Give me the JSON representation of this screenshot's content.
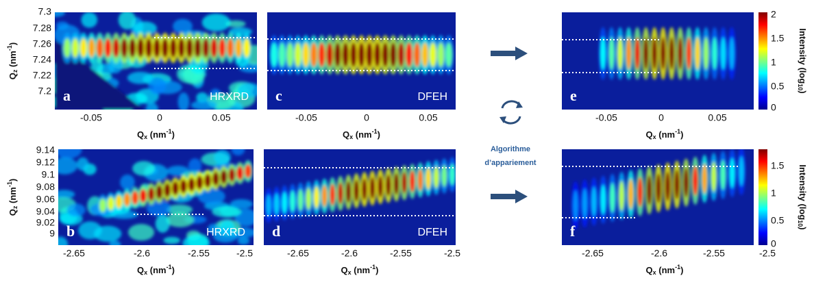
{
  "panels": [
    {
      "letter": "a",
      "method": "HRXRD",
      "x_ticks": [
        "-0.05",
        "0",
        "0.05"
      ],
      "y_ticks": [
        "7.3",
        "7.28",
        "7.26",
        "7.24",
        "7.22",
        "7.2"
      ]
    },
    {
      "letter": "c",
      "method": "DFEH",
      "x_ticks": [
        "-0.05",
        "0",
        "0.05"
      ]
    },
    {
      "letter": "e",
      "x_ticks": [
        "-0.05",
        "0",
        "0.05"
      ],
      "colorbar_ticks": [
        "2",
        "1.5",
        "1",
        "0.5",
        "0"
      ]
    },
    {
      "letter": "b",
      "method": "HRXRD",
      "x_ticks": [
        "-2.65",
        "-2.6",
        "-2.55",
        "-2.5"
      ],
      "y_ticks": [
        "9.14",
        "9.12",
        "9.1",
        "9.08",
        "9.06",
        "9.04",
        "9.02",
        "9"
      ]
    },
    {
      "letter": "d",
      "method": "DFEH",
      "x_ticks": [
        "-2.65",
        "-2.6",
        "-2.55",
        "-2.5"
      ]
    },
    {
      "letter": "f",
      "x_ticks": [
        "-2.65",
        "-2.6",
        "-2.55",
        "-2.5"
      ],
      "colorbar_ticks": [
        "1.5",
        "1",
        "0.5",
        "0"
      ]
    }
  ],
  "x_axis_label": {
    "symbol": "Q",
    "subscript": "x",
    "unit": " (nm",
    "exponent": "-1",
    "close": ")"
  },
  "y_axis_label": {
    "symbol": "Q",
    "subscript": "z",
    "unit": " (nm",
    "exponent": "-1",
    "close": ")"
  },
  "colorbar_label": {
    "text": "Intensity (log",
    "subscript": "10",
    "close": ")"
  },
  "matching_label": [
    "Algorithme",
    "d’appariement"
  ]
}
